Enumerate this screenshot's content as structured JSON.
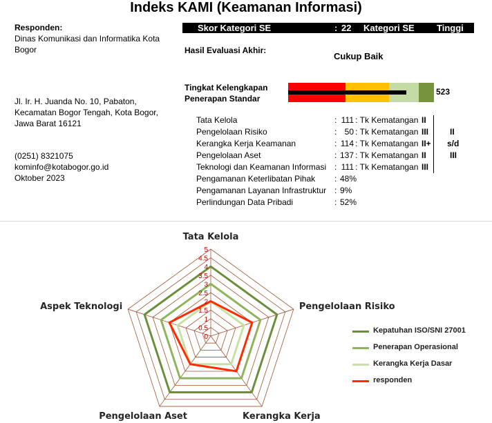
{
  "title": "Indeks KAMI (Keamanan Informasi)",
  "respondent": {
    "heading": "Responden:",
    "name_line1": "Dinas Komunikasi dan Informatika Kota",
    "name_line2": "Bogor",
    "address_line1": "Jl. Ir. H. Juanda No. 10, Pabaton,",
    "address_line2": "Kecamatan Bogor Tengah, Kota Bogor,",
    "address_line3": "Jawa Barat 16121",
    "phone": "(0251) 8321075",
    "email": "kominfo@kotabogor.go.id",
    "date": "Oktober 2023"
  },
  "score_bar": {
    "label": "Skor Kategori SE",
    "colon": ":",
    "value": "22",
    "category_label": "Kategori SE",
    "category_value": "Tinggi"
  },
  "evaluation": {
    "label": "Hasil Evaluasi Akhir:",
    "value": "Cukup Baik"
  },
  "completeness": {
    "label_line1": "Tingkat Kelengkapan",
    "label_line2": "Penerapan Standar",
    "value": "523",
    "max": 645,
    "segment_colors": [
      "#ff0000",
      "#ffc000",
      "#c4dba6",
      "#77933c"
    ]
  },
  "areas": [
    {
      "name": "Tata Kelola",
      "colon": ":",
      "score": "111",
      "level_label": "Tk Kematangan :",
      "level": "II"
    },
    {
      "name": "Pengelolaan Risiko",
      "colon": ":",
      "score": "50",
      "level_label": "Tk Kematangan :",
      "level": "III"
    },
    {
      "name": "Kerangka Kerja Keamanan Informasi",
      "colon": ":",
      "score": "114",
      "level_label": "Tk Kematangan :",
      "level": "II+"
    },
    {
      "name": "Pengelolaan Aset",
      "colon": ":",
      "score": "137",
      "level_label": "Tk Kematangan :",
      "level": "II"
    },
    {
      "name": "Teknologi dan Keamanan Informasi",
      "colon": ":",
      "score": "111",
      "level_label": "Tk Kematangan :",
      "level": "III"
    }
  ],
  "maturity_range": {
    "from": "II",
    "sd": "s/d",
    "to": "III"
  },
  "extensions": [
    {
      "name": "Pengamanan Keterlibatan Pihak Ketiga",
      "colon": ":",
      "value": "48%"
    },
    {
      "name": "Pengamanan Layanan Infrastruktur",
      "colon": ":",
      "value": "9%"
    },
    {
      "name": "Perlindungan Data Pribadi",
      "colon": ":",
      "value": "52%"
    }
  ],
  "chart_data": {
    "type": "radar",
    "categories": [
      "Tata Kelola",
      "Pengelolaan Risiko",
      "Kerangka Kerja",
      "Pengelolaan Aset",
      "Aspek Teknologi"
    ],
    "range": [
      0,
      5
    ],
    "tick_step": 0.5,
    "tick_labels": [
      "0",
      "0.5",
      "1",
      "1.5",
      "2",
      "2.5",
      "3",
      "3.5",
      "4",
      "4.5",
      "5"
    ],
    "legend_position": "right",
    "series": [
      {
        "name": "Kepatuhan ISO/SNI 27001",
        "color": "#6b8e3a",
        "values": [
          4,
          4,
          4,
          4,
          4
        ]
      },
      {
        "name": "Penerapan Operasional",
        "color": "#8fb35a",
        "values": [
          3,
          3,
          3,
          3,
          3
        ]
      },
      {
        "name": "Kerangka Kerja Dasar",
        "color": "#c8e0a4",
        "values": [
          2,
          2,
          2,
          2,
          2
        ]
      },
      {
        "name": "responden",
        "color": "#ff2a00",
        "values": [
          2,
          2.5,
          2.5,
          2,
          2.5
        ]
      }
    ],
    "grid_color": "#a0522d"
  }
}
